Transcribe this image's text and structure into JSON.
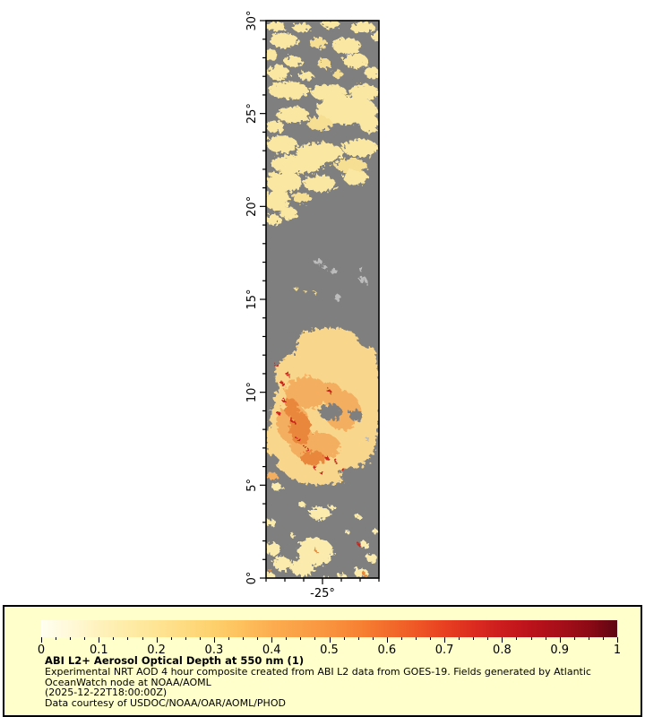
{
  "chart_data": {
    "type": "heatmap",
    "title": "ABI L2+ Aerosol Optical Depth at 550 nm (1)",
    "variable": "Aerosol Optical Depth at 550 nm",
    "map_extent": {
      "lat_deg": [
        0,
        30
      ],
      "lon_deg": [
        -28,
        -22
      ]
    },
    "x_axis": {
      "tick_labels_shown": [
        "-25°"
      ],
      "minor_tick_step_deg": 1
    },
    "y_axis": {
      "tick_labels_shown": [
        "30°",
        "25°",
        "20°",
        "15°",
        "10°",
        "5°",
        "0°"
      ],
      "minor_tick_step_deg": 1
    },
    "colorbar": {
      "range": [
        0,
        1
      ],
      "tick_values": [
        0,
        0.1,
        0.2,
        0.3,
        0.4,
        0.5,
        0.6,
        0.7,
        0.8,
        0.9,
        1
      ],
      "orientation": "horizontal",
      "position": "bottom"
    },
    "observations": [
      "Scattered low-AOD (~0.1-0.2) pale yellow retrievals between 21N and 30N",
      "Gray no-data background over mid region 13N-21N with light gray island pixels (Cape Verde) near 15-17N",
      "Dust plume with AOD ~0.3-0.6 and red speckles >0.7 between 5N and 13N",
      "Sparse low-AOD patches between 0N and 5N"
    ]
  },
  "map_figure": {
    "frame_color": "#000000",
    "bg_color": "#7F7F7F",
    "palette": {
      "Y": "#FAE7A1",
      "y": "#F6DE92",
      "G": "#7F7F7F",
      "I": "#BCBCBC",
      "P": "#F8D68C",
      "O": "#F4AE5E",
      "D": "#E9873C",
      "R": "#C9271B",
      "B": "#FBEBAC",
      "o": "#E98A3A"
    },
    "y_axis": {
      "lat_min": 0,
      "lat_max": 30,
      "major_step": 5,
      "minor_step": 1,
      "labels": [
        "30°",
        "25°",
        "20°",
        "15°",
        "10°",
        "5°",
        "0°"
      ]
    },
    "x_axis": {
      "lon_min": -28,
      "lon_max": -22,
      "major_lon": -25,
      "minor_step": 1,
      "label": "-25°"
    },
    "patches": [
      [
        10,
        6,
        12,
        5,
        "Y"
      ],
      [
        40,
        8,
        10,
        5,
        "Y"
      ],
      [
        72,
        4,
        10,
        5,
        "Y"
      ],
      [
        108,
        8,
        14,
        6,
        "Y"
      ],
      [
        124,
        18,
        6,
        5,
        "Y"
      ],
      [
        20,
        22,
        16,
        8,
        "Y"
      ],
      [
        58,
        25,
        10,
        6,
        "y"
      ],
      [
        90,
        28,
        16,
        9,
        "Y"
      ],
      [
        5,
        38,
        8,
        6,
        "Y"
      ],
      [
        30,
        45,
        10,
        6,
        "Y"
      ],
      [
        65,
        48,
        8,
        5,
        "y"
      ],
      [
        100,
        45,
        14,
        8,
        "Y"
      ],
      [
        14,
        58,
        12,
        8,
        "Y"
      ],
      [
        45,
        62,
        8,
        5,
        "Y"
      ],
      [
        80,
        60,
        6,
        4,
        "y"
      ],
      [
        118,
        58,
        8,
        7,
        "Y"
      ],
      [
        25,
        78,
        22,
        10,
        "Y"
      ],
      [
        70,
        80,
        20,
        9,
        "Y"
      ],
      [
        110,
        80,
        16,
        9,
        "Y"
      ],
      [
        90,
        100,
        34,
        16,
        "Y"
      ],
      [
        30,
        105,
        18,
        9,
        "Y"
      ],
      [
        60,
        115,
        14,
        8,
        "y"
      ],
      [
        115,
        115,
        11,
        10,
        "Y"
      ],
      [
        10,
        118,
        10,
        7,
        "Y"
      ],
      [
        18,
        138,
        17,
        10,
        "Y"
      ],
      [
        60,
        148,
        26,
        12,
        "Y"
      ],
      [
        105,
        142,
        20,
        10,
        "Y"
      ],
      [
        35,
        160,
        30,
        10,
        "Y"
      ],
      [
        95,
        162,
        18,
        8,
        "y"
      ],
      [
        20,
        180,
        20,
        12,
        "Y"
      ],
      [
        60,
        182,
        18,
        9,
        "Y"
      ],
      [
        100,
        175,
        14,
        8,
        "Y"
      ],
      [
        12,
        200,
        14,
        12,
        "Y"
      ],
      [
        40,
        198,
        10,
        6,
        "y"
      ],
      [
        25,
        215,
        10,
        7,
        "Y"
      ],
      [
        8,
        222,
        8,
        6,
        "Y"
      ],
      [
        58,
        269,
        5,
        3,
        "I"
      ],
      [
        65,
        275,
        3,
        2,
        "I"
      ],
      [
        76,
        280,
        4,
        3,
        "I"
      ],
      [
        106,
        277,
        2,
        3,
        "I"
      ],
      [
        108,
        289,
        4,
        4,
        "I"
      ],
      [
        80,
        309,
        4,
        3,
        "I"
      ],
      [
        35,
        300,
        3,
        1.5,
        "y"
      ],
      [
        44,
        302,
        2,
        1,
        "y"
      ],
      [
        55,
        304,
        2,
        1,
        "y"
      ],
      [
        70,
        365,
        40,
        22,
        "P"
      ],
      [
        95,
        395,
        30,
        28,
        "P"
      ],
      [
        40,
        395,
        30,
        25,
        "P"
      ],
      [
        60,
        440,
        55,
        55,
        "P"
      ],
      [
        30,
        470,
        30,
        35,
        "P"
      ],
      [
        90,
        470,
        32,
        30,
        "P"
      ],
      [
        60,
        500,
        40,
        18,
        "P"
      ],
      [
        115,
        420,
        12,
        60,
        "P"
      ],
      [
        115,
        352,
        14,
        13,
        "G"
      ],
      [
        15,
        360,
        20,
        16,
        "G"
      ],
      [
        3,
        428,
        6,
        10,
        "G"
      ],
      [
        45,
        415,
        24,
        18,
        "O"
      ],
      [
        85,
        435,
        20,
        22,
        "O"
      ],
      [
        30,
        450,
        18,
        22,
        "O"
      ],
      [
        55,
        475,
        28,
        16,
        "O"
      ],
      [
        70,
        415,
        14,
        12,
        "O"
      ],
      [
        38,
        455,
        12,
        18,
        "D"
      ],
      [
        52,
        488,
        14,
        8,
        "D"
      ],
      [
        28,
        432,
        8,
        10,
        "D"
      ],
      [
        72,
        437,
        13,
        9,
        "G"
      ],
      [
        100,
        440,
        8,
        6,
        "G"
      ],
      [
        5,
        492,
        9,
        8,
        "G"
      ],
      [
        100,
        507,
        18,
        9,
        "G"
      ],
      [
        12,
        385,
        2,
        2,
        "R"
      ],
      [
        25,
        395,
        2,
        2,
        "R"
      ],
      [
        18,
        405,
        2,
        2,
        "R"
      ],
      [
        20,
        424,
        2,
        2,
        "R"
      ],
      [
        30,
        447,
        2,
        2,
        "R"
      ],
      [
        36,
        467,
        2,
        2,
        "R"
      ],
      [
        55,
        499,
        2,
        2,
        "R"
      ],
      [
        70,
        413,
        2,
        2,
        "R"
      ],
      [
        14,
        438,
        2,
        2,
        "R"
      ],
      [
        62,
        504,
        2,
        2,
        "R"
      ],
      [
        45,
        478,
        2,
        2,
        "R"
      ],
      [
        78,
        492,
        2,
        2,
        "R"
      ],
      [
        85,
        500,
        2,
        2,
        "R"
      ],
      [
        68,
        488,
        2,
        2,
        "R"
      ],
      [
        113,
        467,
        3,
        2,
        "I"
      ],
      [
        12,
        520,
        6,
        4,
        "B"
      ],
      [
        6,
        508,
        7,
        4,
        "O"
      ],
      [
        60,
        550,
        12,
        7,
        "B"
      ],
      [
        40,
        540,
        4,
        3,
        "B"
      ],
      [
        74,
        543,
        4,
        2,
        "B"
      ],
      [
        103,
        554,
        4,
        2,
        "B"
      ],
      [
        55,
        593,
        20,
        16,
        "B"
      ],
      [
        40,
        610,
        13,
        10,
        "B"
      ],
      [
        8,
        590,
        9,
        7,
        "B"
      ],
      [
        18,
        606,
        10,
        8,
        "B"
      ],
      [
        3,
        620,
        7,
        5,
        "B"
      ],
      [
        110,
        585,
        5,
        4,
        "B"
      ],
      [
        118,
        600,
        6,
        5,
        "B"
      ],
      [
        106,
        616,
        8,
        5,
        "B"
      ],
      [
        122,
        570,
        3,
        3,
        "B"
      ],
      [
        90,
        570,
        3,
        2,
        "B"
      ],
      [
        85,
        620,
        5,
        3,
        "B"
      ],
      [
        30,
        575,
        3,
        2,
        "B"
      ],
      [
        70,
        625,
        6,
        4,
        "B"
      ],
      [
        5,
        560,
        6,
        4,
        "B"
      ],
      [
        55,
        590,
        2,
        2,
        "o"
      ],
      [
        110,
        618,
        2,
        2,
        "o"
      ],
      [
        4,
        612,
        2,
        2,
        "o"
      ],
      [
        103,
        584,
        1.5,
        1.5,
        "R"
      ]
    ]
  },
  "legend": {
    "bg_color": "#FFFFCC",
    "border_color": "#000000",
    "title": "ABI L2+ Aerosol Optical Depth at 550 nm (1)",
    "lines": [
      "Experimental NRT AOD 4 hour composite created from ABI L2 data from GOES-19. Fields generated by Atlantic",
      "OceanWatch node at NOAA/AOML",
      "(2025-12-22T18:00:00Z)",
      "Data courtesy of USDOC/NOAA/OAR/AOML/PHOD"
    ],
    "colorbar": {
      "stops": [
        {
          "v": 0.0,
          "c": "#FFFEF0"
        },
        {
          "v": 0.05,
          "c": "#FFF9D8"
        },
        {
          "v": 0.1,
          "c": "#FEF2BC"
        },
        {
          "v": 0.15,
          "c": "#FEECA7"
        },
        {
          "v": 0.2,
          "c": "#FEE494"
        },
        {
          "v": 0.25,
          "c": "#FEDB80"
        },
        {
          "v": 0.3,
          "c": "#FDD06C"
        },
        {
          "v": 0.35,
          "c": "#FDC05C"
        },
        {
          "v": 0.4,
          "c": "#FCAD4F"
        },
        {
          "v": 0.45,
          "c": "#FAA046"
        },
        {
          "v": 0.5,
          "c": "#F9933E"
        },
        {
          "v": 0.55,
          "c": "#F78234"
        },
        {
          "v": 0.6,
          "c": "#F36D2B"
        },
        {
          "v": 0.65,
          "c": "#EF5826"
        },
        {
          "v": 0.7,
          "c": "#E84021"
        },
        {
          "v": 0.75,
          "c": "#DC2C20"
        },
        {
          "v": 0.8,
          "c": "#CC1C1E"
        },
        {
          "v": 0.85,
          "c": "#BB121B"
        },
        {
          "v": 0.9,
          "c": "#A70F19"
        },
        {
          "v": 0.95,
          "c": "#8D0A15"
        },
        {
          "v": 1.0,
          "c": "#5D0613"
        }
      ],
      "major_ticks": [
        {
          "v": 0.0,
          "label": "0"
        },
        {
          "v": 0.1,
          "label": "0.1"
        },
        {
          "v": 0.2,
          "label": "0.2"
        },
        {
          "v": 0.3,
          "label": "0.3"
        },
        {
          "v": 0.4,
          "label": "0.4"
        },
        {
          "v": 0.5,
          "label": "0.5"
        },
        {
          "v": 0.6,
          "label": "0.6"
        },
        {
          "v": 0.7,
          "label": "0.7"
        },
        {
          "v": 0.8,
          "label": "0.8"
        },
        {
          "v": 0.9,
          "label": "0.9"
        },
        {
          "v": 1.0,
          "label": "1"
        }
      ],
      "minor_intervals": 40
    }
  }
}
